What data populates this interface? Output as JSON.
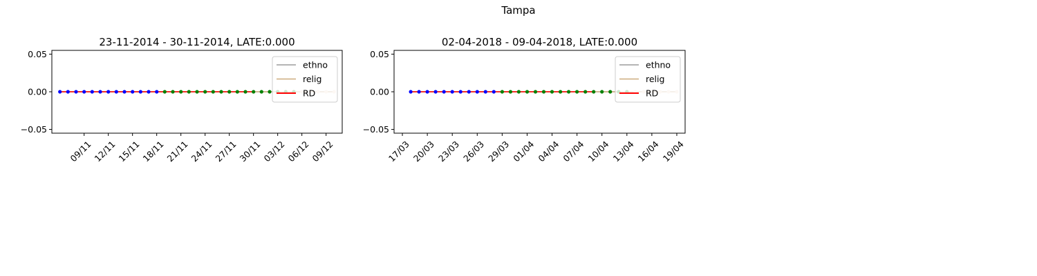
{
  "figure": {
    "suptitle": "Tampa"
  },
  "chart_data": [
    {
      "type": "line",
      "title": "23-11-2014 - 30-11-2014, LATE:0.000",
      "xlabel": "",
      "ylabel": "",
      "ylim": [
        -0.055,
        0.055
      ],
      "yticks": [
        -0.05,
        0.0,
        0.05
      ],
      "ytick_labels": [
        "−0.05",
        "0.00",
        "0.05"
      ],
      "xlim": [
        "2014-11-05",
        "2014-12-11"
      ],
      "xticks": [
        "2014-11-09",
        "2014-11-12",
        "2014-11-15",
        "2014-11-18",
        "2014-11-21",
        "2014-11-24",
        "2014-11-27",
        "2014-11-30",
        "2014-12-03",
        "2014-12-06",
        "2014-12-09"
      ],
      "xtick_labels": [
        "09/11",
        "12/11",
        "15/11",
        "18/11",
        "21/11",
        "24/11",
        "27/11",
        "30/11",
        "03/12",
        "06/12",
        "09/12"
      ],
      "legend": {
        "placement": "upper-right",
        "entries": [
          "ethno",
          "relig",
          "RD"
        ]
      },
      "series": [
        {
          "name": "ethno",
          "color": "#a9a9a9",
          "x": [
            "2014-11-06",
            "2014-12-10"
          ],
          "values": [
            0,
            0
          ]
        },
        {
          "name": "relig",
          "color": "#d2b48c",
          "x": [
            "2014-11-06",
            "2014-12-10"
          ],
          "values": [
            0,
            0
          ]
        },
        {
          "name": "RD",
          "color": "#ff0000",
          "x": [
            "2014-11-06",
            "2014-11-30"
          ],
          "values": [
            0,
            0
          ]
        }
      ],
      "scatter": [
        {
          "color": "#0000ff",
          "x": [
            "2014-11-06",
            "2014-11-07",
            "2014-11-08",
            "2014-11-09",
            "2014-11-10",
            "2014-11-11",
            "2014-11-12",
            "2014-11-13",
            "2014-11-14",
            "2014-11-15",
            "2014-11-16",
            "2014-11-17",
            "2014-11-18"
          ]
        },
        {
          "color": "#008000",
          "x": [
            "2014-11-19",
            "2014-11-20",
            "2014-11-21",
            "2014-11-22",
            "2014-11-23",
            "2014-11-24",
            "2014-11-25",
            "2014-11-26",
            "2014-11-27",
            "2014-11-28",
            "2014-11-29",
            "2014-11-30",
            "2014-12-01",
            "2014-12-02",
            "2014-12-03",
            "2014-12-04",
            "2014-12-05"
          ]
        },
        {
          "color": "#f4d9c8",
          "x": [
            "2014-12-06",
            "2014-12-07",
            "2014-12-08",
            "2014-12-09",
            "2014-12-10"
          ]
        }
      ]
    },
    {
      "type": "line",
      "title": "02-04-2018 - 09-04-2018, LATE:0.000",
      "xlabel": "",
      "ylabel": "",
      "ylim": [
        -0.055,
        0.055
      ],
      "yticks": [
        -0.05,
        0.0,
        0.05
      ],
      "ytick_labels": [
        "−0.05",
        "0.00",
        "0.05"
      ],
      "xlim": [
        "2018-03-16",
        "2018-04-20"
      ],
      "xticks": [
        "2018-03-17",
        "2018-03-20",
        "2018-03-23",
        "2018-03-26",
        "2018-03-29",
        "2018-04-01",
        "2018-04-04",
        "2018-04-07",
        "2018-04-10",
        "2018-04-13",
        "2018-04-16",
        "2018-04-19"
      ],
      "xtick_labels": [
        "17/03",
        "20/03",
        "23/03",
        "26/03",
        "29/03",
        "01/04",
        "04/04",
        "07/04",
        "10/04",
        "13/04",
        "16/04",
        "19/04"
      ],
      "legend": {
        "placement": "upper-right",
        "entries": [
          "ethno",
          "relig",
          "RD"
        ]
      },
      "series": [
        {
          "name": "ethno",
          "color": "#a9a9a9",
          "x": [
            "2018-03-18",
            "2018-04-19"
          ],
          "values": [
            0,
            0
          ]
        },
        {
          "name": "relig",
          "color": "#d2b48c",
          "x": [
            "2018-03-18",
            "2018-04-19"
          ],
          "values": [
            0,
            0
          ]
        },
        {
          "name": "RD",
          "color": "#ff0000",
          "x": [
            "2018-03-18",
            "2018-04-09"
          ],
          "values": [
            0,
            0
          ]
        }
      ],
      "scatter": [
        {
          "color": "#0000ff",
          "x": [
            "2018-03-18",
            "2018-03-19",
            "2018-03-20",
            "2018-03-21",
            "2018-03-22",
            "2018-03-23",
            "2018-03-24",
            "2018-03-25",
            "2018-03-26",
            "2018-03-27",
            "2018-03-28"
          ]
        },
        {
          "color": "#008000",
          "x": [
            "2018-03-29",
            "2018-03-30",
            "2018-03-31",
            "2018-04-01",
            "2018-04-02",
            "2018-04-03",
            "2018-04-04",
            "2018-04-05",
            "2018-04-06",
            "2018-04-07",
            "2018-04-08",
            "2018-04-09",
            "2018-04-10",
            "2018-04-11",
            "2018-04-12",
            "2018-04-13"
          ]
        },
        {
          "color": "#f4d9c8",
          "x": [
            "2018-04-14",
            "2018-04-15",
            "2018-04-16",
            "2018-04-17",
            "2018-04-18",
            "2018-04-19"
          ]
        }
      ]
    }
  ]
}
